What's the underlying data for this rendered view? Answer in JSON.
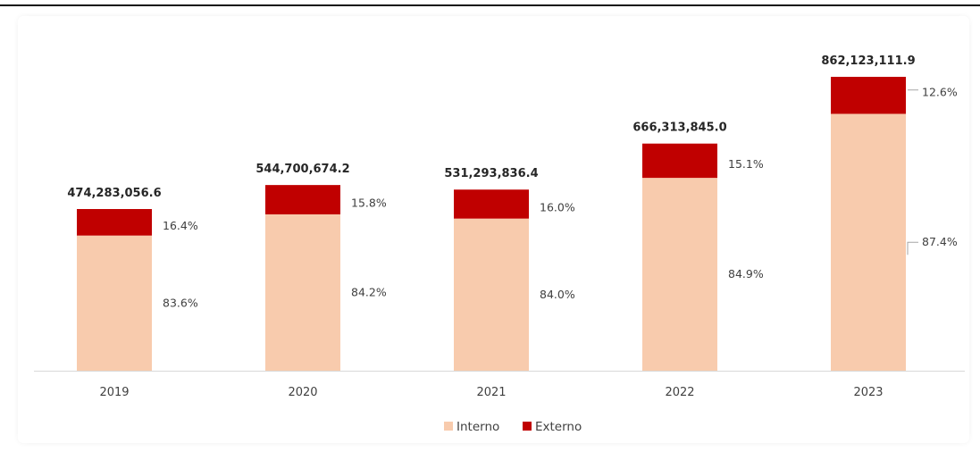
{
  "colors": {
    "interno": "#f8cbad",
    "externo": "#c00000",
    "axis": "#d9d9d9",
    "text": "#404040",
    "total_text": "#262626"
  },
  "chart_data": {
    "type": "bar",
    "stacked": true,
    "categories": [
      "2019",
      "2020",
      "2021",
      "2022",
      "2023"
    ],
    "totals": [
      474283056.6,
      544700674.2,
      531293836.4,
      666313845.0,
      862123111.9
    ],
    "total_labels": [
      "474,283,056.6",
      "544,700,674.2",
      "531,293,836.4",
      "666,313,845.0",
      "862,123,111.9"
    ],
    "series": [
      {
        "name": "Interno",
        "color": "#f8cbad",
        "values": [
          396500635.3,
          458637967.7,
          446286822.6,
          565700454.4,
          753495599.8
        ],
        "labels": [
          "83.6%",
          "84.2%",
          "84.0%",
          "84.9%",
          "87.4%"
        ]
      },
      {
        "name": "Externo",
        "color": "#c00000",
        "values": [
          77782421.3,
          86062706.5,
          85007013.8,
          100613390.6,
          108627512.1
        ],
        "labels": [
          "16.4%",
          "15.8%",
          "16.0%",
          "15.1%",
          "12.6%"
        ]
      }
    ],
    "ylim": [
      0,
      1000000000
    ],
    "legend_position": "bottom"
  },
  "header": {
    "fragment": "(…)"
  }
}
